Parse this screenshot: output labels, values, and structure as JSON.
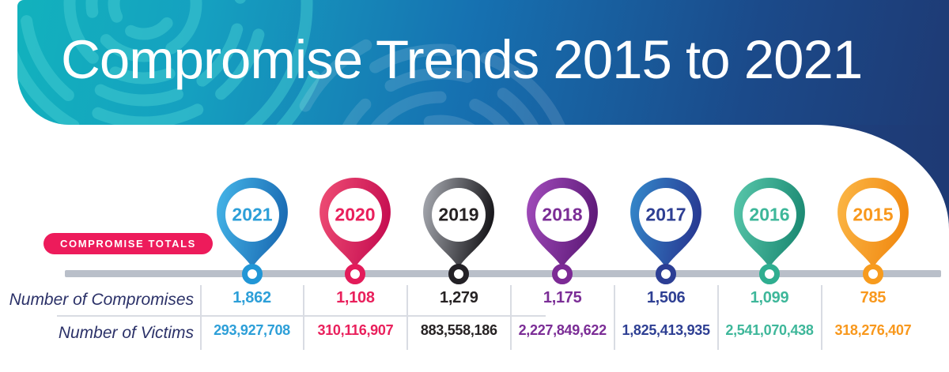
{
  "header": {
    "title": "Compromise Trends 2015 to 2021"
  },
  "badge": {
    "label": "COMPROMISE TOTALS"
  },
  "table": {
    "row_labels": [
      "Number of Compromises",
      "Number of Victims"
    ]
  },
  "years": [
    {
      "year": "2021",
      "compromises": "1,862",
      "victims": "293,927,708",
      "color": "#2d9fd8",
      "grad_light": "#45b5e8",
      "grad_dark": "#1b6cb4",
      "ring": "#2196d6"
    },
    {
      "year": "2020",
      "compromises": "1,108",
      "victims": "310,116,907",
      "color": "#e9205c",
      "grad_light": "#ee4d74",
      "grad_dark": "#c70f52",
      "ring": "#e31b5a"
    },
    {
      "year": "2019",
      "compromises": "1,279",
      "victims": "883,558,186",
      "color": "#262223",
      "grad_light": "#a8abb2",
      "grad_dark": "#19181c",
      "ring": "#232126"
    },
    {
      "year": "2018",
      "compromises": "1,175",
      "victims": "2,227,849,622",
      "color": "#7b2d96",
      "grad_light": "#a14cbb",
      "grad_dark": "#5f1a79",
      "ring": "#7c2a95"
    },
    {
      "year": "2017",
      "compromises": "1,506",
      "victims": "1,825,413,935",
      "color": "#2e3f93",
      "grad_light": "#3489cb",
      "grad_dark": "#283a93",
      "ring": "#2c3e94"
    },
    {
      "year": "2016",
      "compromises": "1,099",
      "victims": "2,541,070,438",
      "color": "#3eb79a",
      "grad_light": "#58c7ab",
      "grad_dark": "#1d8b74",
      "ring": "#2fae90"
    },
    {
      "year": "2015",
      "compromises": "785",
      "victims": "318,276,407",
      "color": "#f8981d",
      "grad_light": "#fbb646",
      "grad_dark": "#f18a12",
      "ring": "#f79b1e"
    }
  ],
  "colors": {
    "badge_bg": "#ed1b5b",
    "label_navy": "#2b3168",
    "timeline_gray": "#b9bfc9",
    "divider_gray": "#d9dce3",
    "header_teal": "#12b2bd",
    "header_navy": "#1e3a74"
  },
  "chart_data": {
    "type": "table",
    "title": "Compromise Trends 2015 to 2021",
    "categories": [
      "2021",
      "2020",
      "2019",
      "2018",
      "2017",
      "2016",
      "2015"
    ],
    "series": [
      {
        "name": "Number of Compromises",
        "values": [
          1862,
          1108,
          1279,
          1175,
          1506,
          1099,
          785
        ]
      },
      {
        "name": "Number of Victims",
        "values": [
          293927708,
          310116907,
          883558186,
          2227849622,
          1825413935,
          2541070438,
          318276407
        ]
      }
    ],
    "legend_position": "none",
    "grid": false
  }
}
